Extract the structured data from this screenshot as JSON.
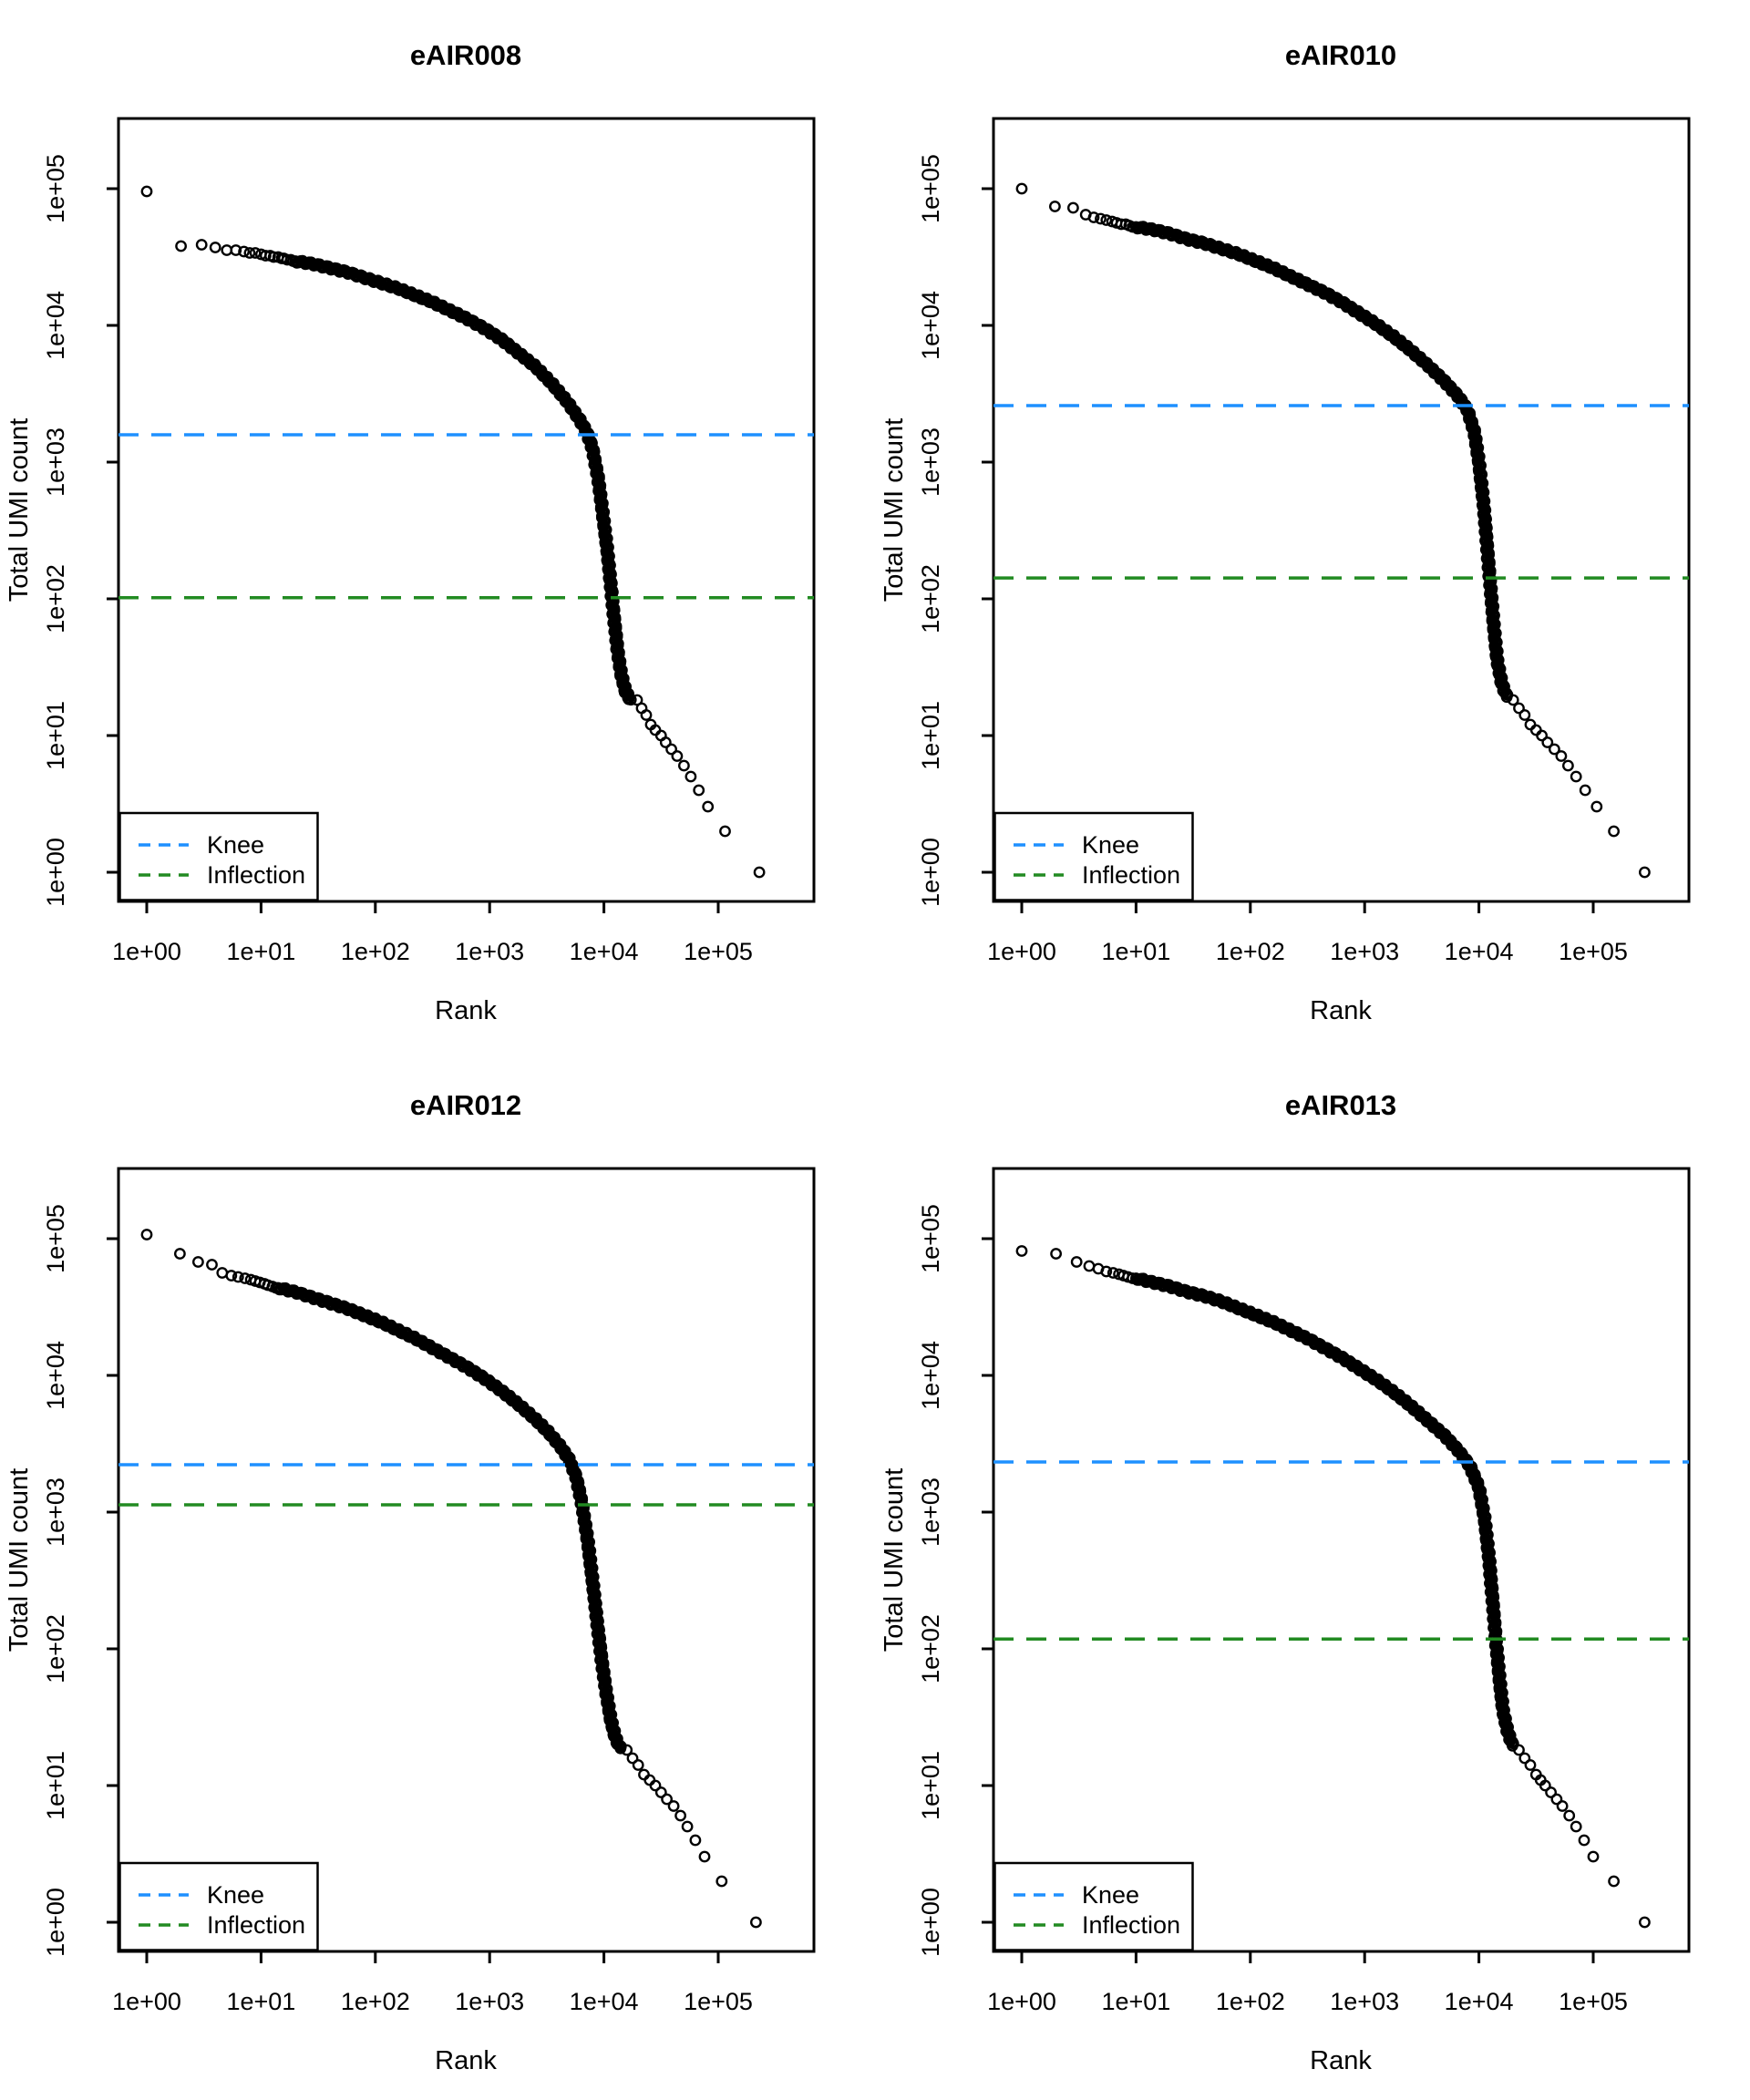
{
  "figure": {
    "layout": "2x2 grid of barcode-rank (knee) plots",
    "background": "#ffffff",
    "point_color": "#000000",
    "knee_color": "#1E90FF",
    "inflection_color": "#228B22",
    "axis": {
      "xlabel": "Rank",
      "ylabel": "Total UMI count",
      "x_tick_labels": [
        "1e+00",
        "1e+01",
        "1e+02",
        "1e+03",
        "1e+04",
        "1e+05"
      ],
      "y_tick_labels": [
        "1e+00",
        "1e+01",
        "1e+02",
        "1e+03",
        "1e+04",
        "1e+05"
      ],
      "x_log10_range": [
        -0.25,
        5.84
      ],
      "y_log10_range": [
        -0.21,
        5.51
      ],
      "grid": false
    },
    "legend": {
      "position": "bottomleft",
      "items": [
        {
          "label": "Knee",
          "color": "#1E90FF",
          "line_style": "dashed"
        },
        {
          "label": "Inflection",
          "color": "#228B22",
          "line_style": "dashed"
        }
      ]
    }
  },
  "chart_data": [
    {
      "type": "scatter",
      "title": "eAIR008",
      "xlabel": "Rank",
      "ylabel": "Total UMI count",
      "x_scale": "log10",
      "y_scale": "log10",
      "knee": 1585,
      "inflection": 102,
      "singles_log10": [
        [
          0,
          4.98
        ],
        [
          0.3,
          4.58
        ],
        [
          0.48,
          4.59
        ],
        [
          0.6,
          4.57
        ],
        [
          0.7,
          4.55
        ],
        [
          0.78,
          4.55
        ],
        [
          0.85,
          4.54
        ],
        [
          0.9,
          4.53
        ],
        [
          0.95,
          4.53
        ],
        [
          1.0,
          4.52
        ],
        [
          1.04,
          4.51
        ],
        [
          1.08,
          4.51
        ],
        [
          1.11,
          4.5
        ],
        [
          1.15,
          4.5
        ],
        [
          1.18,
          4.49
        ],
        [
          1.2,
          4.49
        ],
        [
          1.23,
          4.48
        ],
        [
          1.26,
          4.48
        ],
        [
          1.28,
          4.47
        ]
      ],
      "curve_log10": [
        [
          1.3,
          4.47
        ],
        [
          1.45,
          4.45
        ],
        [
          1.6,
          4.42
        ],
        [
          1.75,
          4.39
        ],
        [
          1.9,
          4.35
        ],
        [
          2.05,
          4.31
        ],
        [
          2.2,
          4.27
        ],
        [
          2.35,
          4.22
        ],
        [
          2.5,
          4.17
        ],
        [
          2.65,
          4.11
        ],
        [
          2.8,
          4.05
        ],
        [
          2.95,
          3.98
        ],
        [
          3.1,
          3.9
        ],
        [
          3.25,
          3.8
        ],
        [
          3.4,
          3.7
        ],
        [
          3.55,
          3.57
        ],
        [
          3.68,
          3.44
        ],
        [
          3.78,
          3.32
        ],
        [
          3.85,
          3.22
        ],
        [
          3.9,
          3.1
        ],
        [
          3.95,
          2.88
        ],
        [
          3.99,
          2.62
        ],
        [
          4.03,
          2.35
        ],
        [
          4.06,
          2.1
        ],
        [
          4.09,
          1.85
        ],
        [
          4.12,
          1.62
        ],
        [
          4.15,
          1.45
        ],
        [
          4.19,
          1.32
        ],
        [
          4.24,
          1.25
        ]
      ],
      "tail_log10": [
        [
          4.29,
          1.26
        ],
        [
          4.33,
          1.2
        ],
        [
          4.37,
          1.15
        ],
        [
          4.41,
          1.08
        ],
        [
          4.45,
          1.04
        ],
        [
          4.5,
          1.0
        ],
        [
          4.54,
          0.95
        ],
        [
          4.59,
          0.9
        ],
        [
          4.64,
          0.85
        ],
        [
          4.7,
          0.78
        ],
        [
          4.76,
          0.7
        ],
        [
          4.83,
          0.6
        ],
        [
          4.91,
          0.48
        ],
        [
          5.06,
          0.3
        ],
        [
          5.36,
          0.0
        ]
      ]
    },
    {
      "type": "scatter",
      "title": "eAIR010",
      "xlabel": "Rank",
      "ylabel": "Total UMI count",
      "x_scale": "log10",
      "y_scale": "log10",
      "knee": 2590,
      "inflection": 142,
      "singles_log10": [
        [
          0,
          5.0
        ],
        [
          0.29,
          4.87
        ],
        [
          0.45,
          4.86
        ],
        [
          0.56,
          4.81
        ],
        [
          0.63,
          4.79
        ],
        [
          0.69,
          4.78
        ],
        [
          0.74,
          4.77
        ],
        [
          0.79,
          4.76
        ],
        [
          0.83,
          4.75
        ],
        [
          0.87,
          4.74
        ],
        [
          0.91,
          4.74
        ],
        [
          0.94,
          4.73
        ],
        [
          0.97,
          4.72
        ]
      ],
      "curve_log10": [
        [
          1.0,
          4.72
        ],
        [
          1.15,
          4.7
        ],
        [
          1.3,
          4.67
        ],
        [
          1.45,
          4.63
        ],
        [
          1.6,
          4.6
        ],
        [
          1.75,
          4.56
        ],
        [
          1.9,
          4.52
        ],
        [
          2.05,
          4.47
        ],
        [
          2.2,
          4.42
        ],
        [
          2.35,
          4.36
        ],
        [
          2.5,
          4.3
        ],
        [
          2.65,
          4.24
        ],
        [
          2.8,
          4.17
        ],
        [
          2.95,
          4.09
        ],
        [
          3.1,
          4.01
        ],
        [
          3.25,
          3.92
        ],
        [
          3.4,
          3.82
        ],
        [
          3.55,
          3.71
        ],
        [
          3.7,
          3.59
        ],
        [
          3.82,
          3.48
        ],
        [
          3.9,
          3.38
        ],
        [
          3.96,
          3.22
        ],
        [
          4.0,
          3.0
        ],
        [
          4.04,
          2.7
        ],
        [
          4.07,
          2.4
        ],
        [
          4.1,
          2.1
        ],
        [
          4.13,
          1.8
        ],
        [
          4.16,
          1.55
        ],
        [
          4.2,
          1.38
        ],
        [
          4.25,
          1.27
        ]
      ],
      "tail_log10": [
        [
          4.3,
          1.26
        ],
        [
          4.35,
          1.2
        ],
        [
          4.4,
          1.15
        ],
        [
          4.45,
          1.08
        ],
        [
          4.5,
          1.04
        ],
        [
          4.55,
          1.0
        ],
        [
          4.6,
          0.95
        ],
        [
          4.66,
          0.9
        ],
        [
          4.72,
          0.85
        ],
        [
          4.78,
          0.78
        ],
        [
          4.85,
          0.7
        ],
        [
          4.93,
          0.6
        ],
        [
          5.03,
          0.48
        ],
        [
          5.18,
          0.3
        ],
        [
          5.45,
          0.0
        ]
      ]
    },
    {
      "type": "scatter",
      "title": "eAIR012",
      "xlabel": "Rank",
      "ylabel": "Total UMI count",
      "x_scale": "log10",
      "y_scale": "log10",
      "knee": 2222,
      "inflection": 1130,
      "singles_log10": [
        [
          0,
          5.03
        ],
        [
          0.29,
          4.89
        ],
        [
          0.45,
          4.83
        ],
        [
          0.57,
          4.81
        ],
        [
          0.66,
          4.75
        ],
        [
          0.74,
          4.73
        ],
        [
          0.8,
          4.72
        ],
        [
          0.86,
          4.71
        ],
        [
          0.91,
          4.7
        ],
        [
          0.95,
          4.69
        ],
        [
          0.99,
          4.68
        ],
        [
          1.03,
          4.67
        ],
        [
          1.06,
          4.66
        ],
        [
          1.1,
          4.65
        ],
        [
          1.13,
          4.64
        ]
      ],
      "curve_log10": [
        [
          1.15,
          4.64
        ],
        [
          1.3,
          4.61
        ],
        [
          1.45,
          4.57
        ],
        [
          1.6,
          4.53
        ],
        [
          1.75,
          4.49
        ],
        [
          1.9,
          4.44
        ],
        [
          2.05,
          4.39
        ],
        [
          2.2,
          4.33
        ],
        [
          2.35,
          4.27
        ],
        [
          2.5,
          4.2
        ],
        [
          2.65,
          4.13
        ],
        [
          2.8,
          4.06
        ],
        [
          2.95,
          3.98
        ],
        [
          3.1,
          3.89
        ],
        [
          3.25,
          3.79
        ],
        [
          3.4,
          3.68
        ],
        [
          3.52,
          3.58
        ],
        [
          3.62,
          3.48
        ],
        [
          3.7,
          3.38
        ],
        [
          3.76,
          3.25
        ],
        [
          3.81,
          3.05
        ],
        [
          3.86,
          2.78
        ],
        [
          3.9,
          2.5
        ],
        [
          3.94,
          2.2
        ],
        [
          3.98,
          1.92
        ],
        [
          4.02,
          1.68
        ],
        [
          4.06,
          1.48
        ],
        [
          4.1,
          1.35
        ],
        [
          4.15,
          1.26
        ]
      ],
      "tail_log10": [
        [
          4.2,
          1.26
        ],
        [
          4.25,
          1.2
        ],
        [
          4.3,
          1.15
        ],
        [
          4.35,
          1.08
        ],
        [
          4.4,
          1.04
        ],
        [
          4.45,
          1.0
        ],
        [
          4.5,
          0.95
        ],
        [
          4.55,
          0.9
        ],
        [
          4.61,
          0.85
        ],
        [
          4.67,
          0.78
        ],
        [
          4.73,
          0.7
        ],
        [
          4.8,
          0.6
        ],
        [
          4.88,
          0.48
        ],
        [
          5.03,
          0.3
        ],
        [
          5.33,
          0.0
        ]
      ]
    },
    {
      "type": "scatter",
      "title": "eAIR013",
      "xlabel": "Rank",
      "ylabel": "Total UMI count",
      "x_scale": "log10",
      "y_scale": "log10",
      "knee": 2327,
      "inflection": 118,
      "singles_log10": [
        [
          0,
          4.91
        ],
        [
          0.3,
          4.89
        ],
        [
          0.48,
          4.83
        ],
        [
          0.59,
          4.8
        ],
        [
          0.67,
          4.78
        ],
        [
          0.74,
          4.76
        ],
        [
          0.8,
          4.75
        ],
        [
          0.85,
          4.74
        ],
        [
          0.89,
          4.73
        ],
        [
          0.93,
          4.72
        ],
        [
          0.97,
          4.71
        ]
      ],
      "curve_log10": [
        [
          1.0,
          4.71
        ],
        [
          1.15,
          4.68
        ],
        [
          1.3,
          4.65
        ],
        [
          1.45,
          4.61
        ],
        [
          1.6,
          4.58
        ],
        [
          1.75,
          4.54
        ],
        [
          1.9,
          4.49
        ],
        [
          2.05,
          4.44
        ],
        [
          2.2,
          4.39
        ],
        [
          2.35,
          4.33
        ],
        [
          2.5,
          4.27
        ],
        [
          2.65,
          4.2
        ],
        [
          2.8,
          4.13
        ],
        [
          2.95,
          4.05
        ],
        [
          3.1,
          3.97
        ],
        [
          3.25,
          3.88
        ],
        [
          3.4,
          3.78
        ],
        [
          3.55,
          3.67
        ],
        [
          3.7,
          3.56
        ],
        [
          3.82,
          3.45
        ],
        [
          3.92,
          3.34
        ],
        [
          4.0,
          3.18
        ],
        [
          4.05,
          2.95
        ],
        [
          4.09,
          2.65
        ],
        [
          4.12,
          2.35
        ],
        [
          4.15,
          2.05
        ],
        [
          4.18,
          1.78
        ],
        [
          4.21,
          1.55
        ],
        [
          4.25,
          1.4
        ],
        [
          4.3,
          1.28
        ]
      ],
      "tail_log10": [
        [
          4.35,
          1.26
        ],
        [
          4.4,
          1.2
        ],
        [
          4.45,
          1.15
        ],
        [
          4.5,
          1.08
        ],
        [
          4.54,
          1.04
        ],
        [
          4.58,
          1.0
        ],
        [
          4.63,
          0.95
        ],
        [
          4.68,
          0.9
        ],
        [
          4.73,
          0.85
        ],
        [
          4.79,
          0.78
        ],
        [
          4.85,
          0.7
        ],
        [
          4.92,
          0.6
        ],
        [
          5.0,
          0.48
        ],
        [
          5.18,
          0.3
        ],
        [
          5.45,
          0.0
        ]
      ]
    }
  ]
}
